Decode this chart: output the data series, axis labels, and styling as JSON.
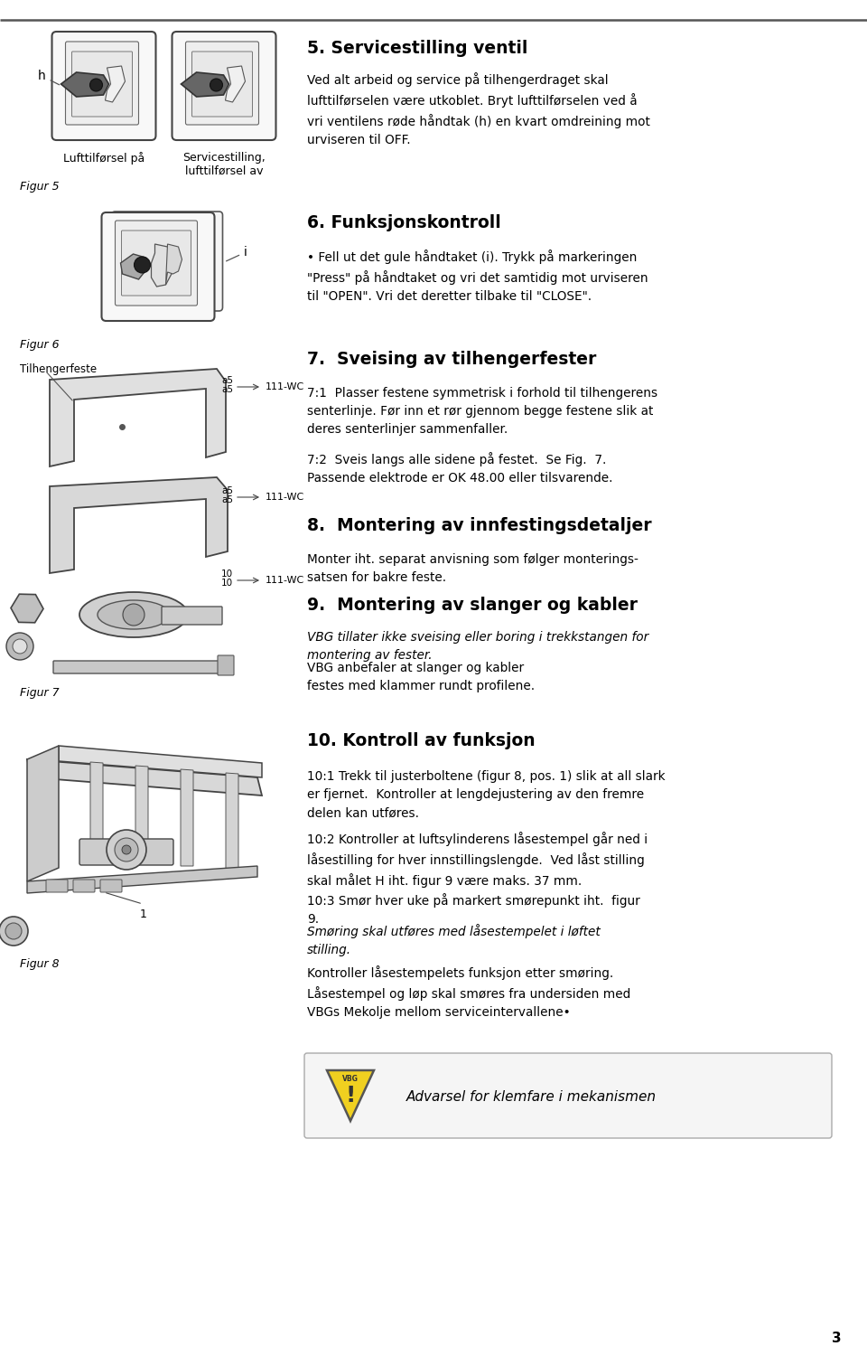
{
  "background_color": "#ffffff",
  "text_color": "#000000",
  "page_number": "3",
  "section5_title": "5. Servicestilling ventil",
  "section5_body": "Ved alt arbeid og service på tilhengerdraget skal\nlufttilførselen være utkoblet. Bryt lufttilførselen ved å\nvri ventilens røde håndtak (h) en kvart omdreining mot\nurviseren til OFF.",
  "fig5_label1": "Lufttilførsel på",
  "fig5_label2": "Servicestilling,\nlufttilførsel av",
  "fig5_caption": "Figur 5",
  "fig5_h_label": "h",
  "section6_title": "6. Funksjonskontroll",
  "section6_bullet": "• Fell ut det gule håndtaket (i). Trykk på markeringen\n\"Press\" på håndtaket og vri det samtidig mot urviseren\ntil \"OPEN\". Vri det deretter tilbake til \"CLOSE\".",
  "fig6_caption": "Figur 6",
  "fig6_i_label": "i",
  "section7_title": "7.  Sveising av tilhengerfester",
  "section7_body1": "7:1  Plasser festene symmetrisk i forhold til tilhengerens\nsenterlinje. Før inn et rør gjennom begge festene slik at\nderes senterlinjer sammenfaller.",
  "section7_body2": "7:2  Sveis langs alle sidene på festet.  Se Fig.  7.\nPassende elektrode er OK 48.00 eller tilsvarende.",
  "fig7_label_tilhengerfeste": "Tilhengerfeste",
  "fig7_111wc1": "111-WC",
  "fig7_111wc2": "111-WC",
  "fig7_111wc3": "111-WC",
  "fig7_caption": "Figur 7",
  "section8_title": "8.  Montering av innfestingsdetaljer",
  "section8_body": "Monter iht. separat anvisning som følger monterings-\nsatsen for bakre feste.",
  "section9_title": "9.  Montering av slanger og kabler",
  "section9_body_italic": "VBG tillater ikke sveising eller boring i trekkstangen for\nmontering av fester.",
  "section9_body_normal": " VBG anbefaler at slanger og kabler\nfestes med klammer rundt profilene.",
  "fig8_caption": "Figur 8",
  "fig8_1_label": "1",
  "section10_title": "10. Kontroll av funksjon",
  "section10_body1": "10:1 Trekk til justerboltene (figur 8, pos. 1) slik at all slark\ner fjernet.  Kontroller at lengdejustering av den fremre\ndelen kan utføres.",
  "section10_body2": "10:2 Kontroller at luftsylinderens låsestempel går ned i\nlåsestilling for hver innstillingslengde.  Ved låst stilling\nskal målet H iht. figur 9 være maks. 37 mm.",
  "section10_body3": "10:3 Smør hver uke på markert smørepunkt iht.  figur\n9.",
  "section10_italic": "Smøring skal utføres med låsestempelet i løftet\nstilling.",
  "section10_body4": "Kontroller låsestempelets funksjon etter smøring.\nLåsestempel og løp skal smøres fra undersiden med\nVBGs Mekolje mellom serviceintervallene•",
  "warning_text": "Advarsel for klemfare i mekanismen"
}
